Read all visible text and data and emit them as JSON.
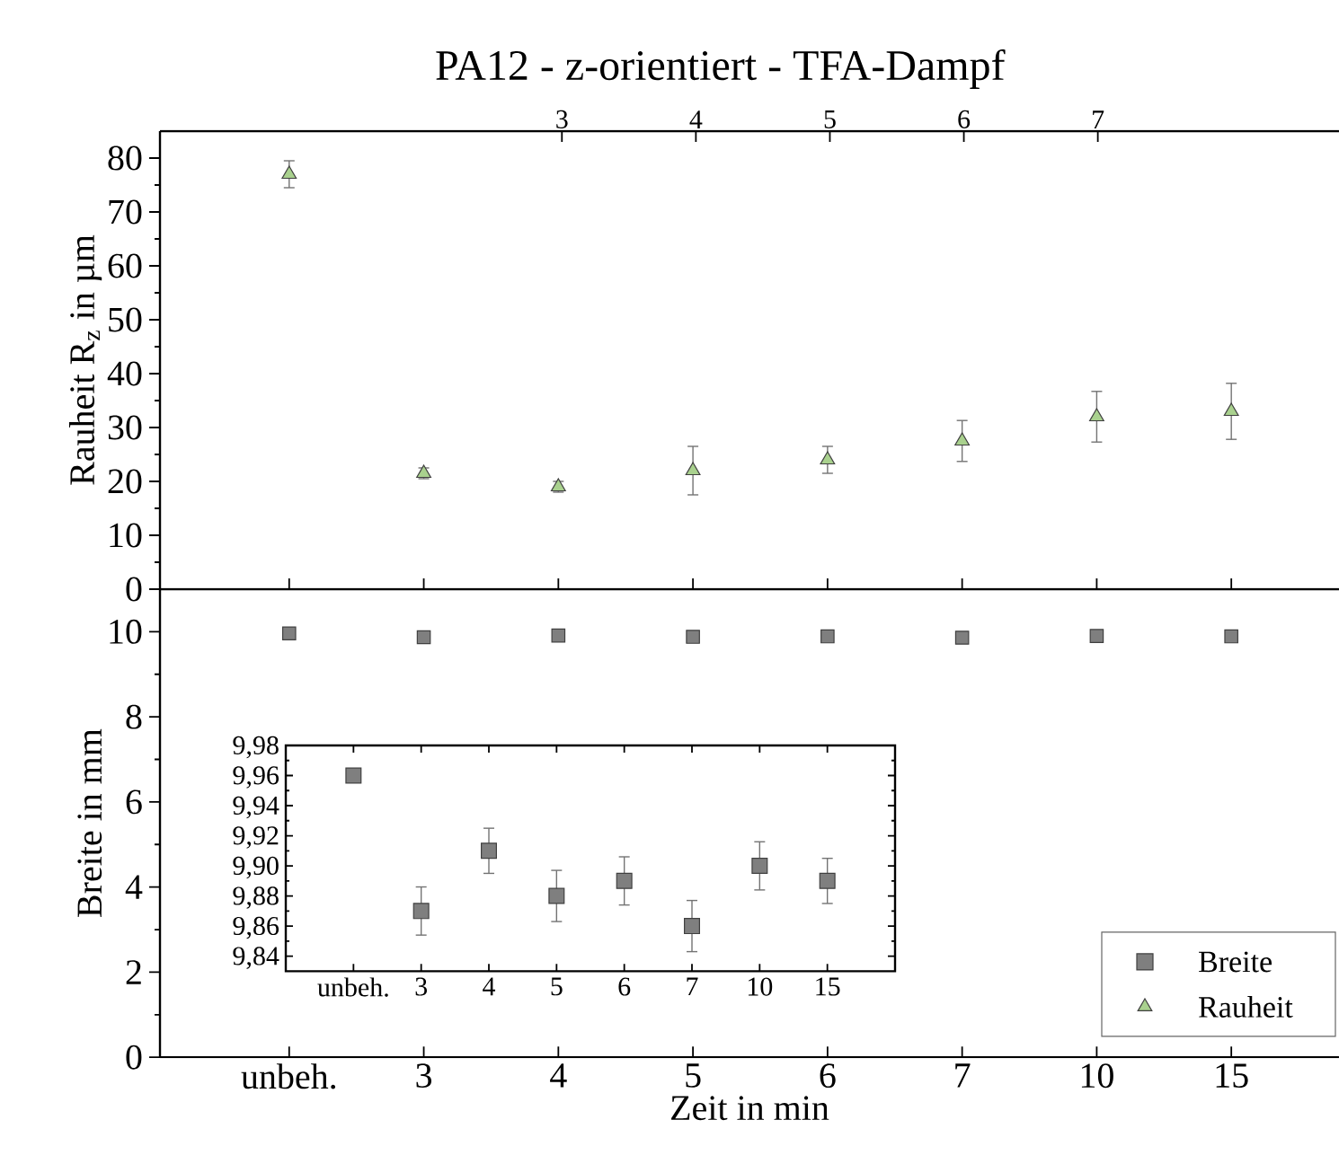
{
  "chart_data": [
    {
      "type": "scatter",
      "title": "PA12 - z-orientiert - TFA-Dampf",
      "ylabel": "Rauheit R$_{z}$ in µm",
      "categories": [
        null,
        null,
        null,
        null,
        null,
        null,
        null,
        null
      ],
      "series": [
        {
          "name": "Rauheit",
          "color": "#a9d18e",
          "values": [
            77,
            21.5,
            19,
            22,
            24,
            27.5,
            32,
            33
          ],
          "errors": [
            2.5,
            1,
            1,
            4.5,
            2.5,
            3.8,
            4.7,
            5.2
          ]
        }
      ],
      "ylim": [
        0,
        85
      ],
      "yticks": [
        0,
        10,
        20,
        30,
        40,
        50,
        60,
        70,
        80
      ],
      "x2lim": [
        0,
        8.8
      ],
      "x2ticks": [
        3,
        4,
        5,
        6,
        7
      ],
      "marker": "triangle",
      "tick_labels": "y"
    },
    {
      "type": "scatter",
      "xlabel": "Zeit in min",
      "ylabel": "Breite in mm",
      "categories": [
        "unbeh.",
        "3",
        "4",
        "5",
        "6",
        "7",
        "10",
        "15"
      ],
      "series": [
        {
          "name": "Breite",
          "color": "#7f7f7f",
          "values": [
            9.96,
            9.87,
            9.91,
            9.88,
            9.89,
            9.86,
            9.9,
            9.89
          ]
        }
      ],
      "ylim": [
        0,
        11
      ],
      "yticks": [
        0,
        2,
        4,
        6,
        8,
        10
      ],
      "marker": "square",
      "legend": "bottom right"
    },
    {
      "type": "scatter",
      "categories": [
        "unbeh.",
        "3",
        "4",
        "5",
        "6",
        "7",
        "10",
        "15"
      ],
      "series": [
        {
          "color": "#7f7f7f",
          "values": [
            9.96,
            9.87,
            9.91,
            9.88,
            9.89,
            9.86,
            9.9,
            9.89
          ],
          "errors": [
            null,
            0.016,
            0.015,
            0.017,
            0.016,
            0.017,
            0.016,
            0.015
          ]
        }
      ],
      "ylim": [
        9.83,
        9.98
      ],
      "yticks": [
        {
          "value": 9.84,
          "label": "9,84"
        },
        {
          "value": 9.86,
          "label": "9,86"
        },
        {
          "value": 9.88,
          "label": "9,88"
        },
        {
          "value": 9.9,
          "label": "9,90"
        },
        {
          "value": 9.92,
          "label": "9,92"
        },
        {
          "value": 9.94,
          "label": "9,94"
        },
        {
          "value": 9.96,
          "label": "9,96"
        },
        {
          "value": 9.98,
          "label": "9,98"
        }
      ],
      "marker": "square"
    }
  ]
}
